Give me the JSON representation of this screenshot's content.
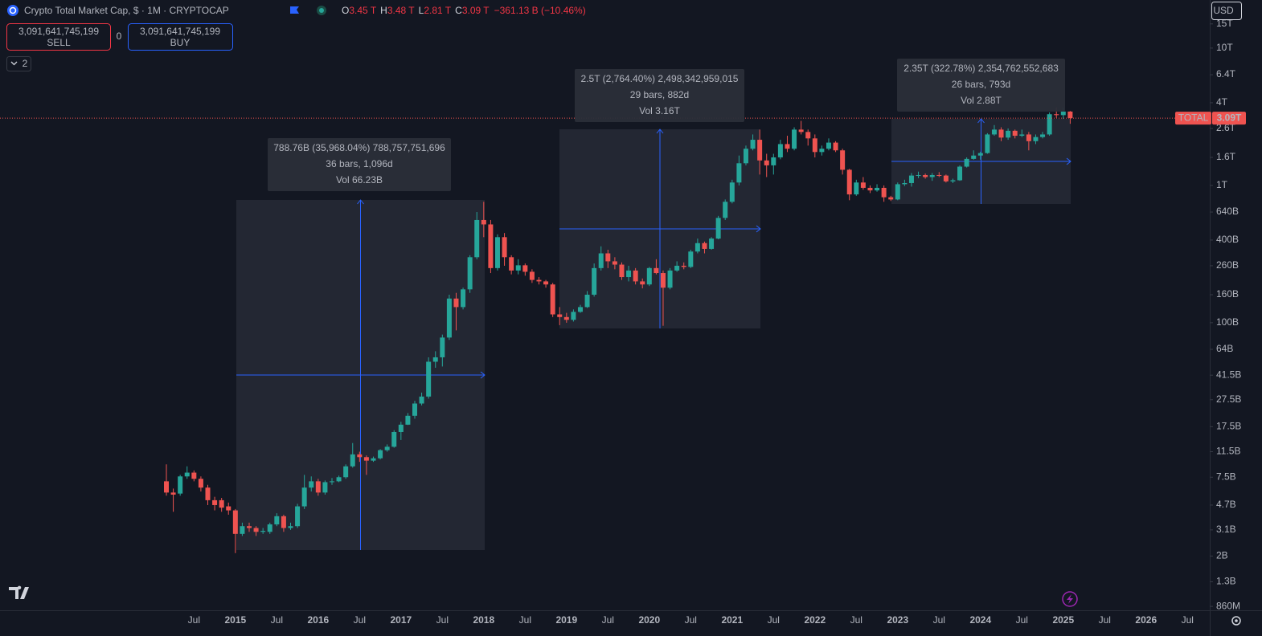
{
  "chart_data": {
    "type": "candlestick",
    "title": "Crypto Total Market Cap, $ · 1M · CRYPTOCAP",
    "categories": [
      null,
      null,
      null,
      null,
      "Jul",
      null,
      null,
      null,
      null,
      null,
      "2015",
      null,
      null,
      null,
      null,
      null,
      "Jul",
      null,
      null,
      null,
      null,
      null,
      "2016",
      null,
      null,
      null,
      null,
      null,
      "Jul",
      null,
      null,
      null,
      null,
      null,
      "2017",
      null,
      null,
      null,
      null,
      null,
      "Jul",
      null,
      null,
      null,
      null,
      null,
      "2018",
      null,
      null,
      null,
      null,
      null,
      "Jul",
      null,
      null,
      null,
      null,
      null,
      "2019",
      null,
      null,
      null,
      null,
      null,
      "Jul",
      null,
      null,
      null,
      null,
      null,
      "2020",
      null,
      null,
      null,
      null,
      null,
      "Jul",
      null,
      null,
      null,
      null,
      null,
      "2021",
      null,
      null,
      null,
      null,
      null,
      "Jul",
      null,
      null,
      null,
      null,
      null,
      "2022",
      null,
      null,
      null,
      null,
      null,
      "Jul",
      null,
      null,
      null,
      null,
      null,
      "2023",
      null,
      null,
      null,
      null,
      null,
      "Jul",
      null,
      null,
      null,
      null,
      null,
      "2024",
      null,
      null,
      null,
      null,
      null,
      "Jul",
      null,
      null,
      null,
      null,
      null,
      "2025",
      null,
      null,
      null,
      null,
      null,
      "Jul",
      null,
      null,
      null,
      null,
      null,
      "2026",
      null,
      null,
      null,
      null,
      null,
      "Jul"
    ],
    "series": [
      {
        "name": "TOTAL",
        "color_up": "#26a69a",
        "color_down": "#ef5350",
        "open": [
          7.0,
          5.8,
          5.7,
          7.6,
          8.1,
          7.3,
          6.3,
          5.1,
          5.1,
          4.6,
          4.3,
          2.9,
          3.3,
          3.2,
          3.0,
          3.0,
          3.4,
          3.9,
          3.2,
          3.3,
          4.6,
          6.3,
          7.0,
          5.8,
          6.9,
          7.0,
          7.5,
          9.0,
          11.0,
          10.5,
          9.9,
          10.3,
          11.8,
          12.5,
          16,
          18.1,
          21,
          25.8,
          29,
          52,
          56,
          78,
          150,
          130,
          175,
          300,
          560,
          520,
          250,
          420,
          300,
          240,
          262,
          235,
          205,
          200,
          190,
          115,
          110,
          105,
          120,
          130,
          160,
          250,
          320,
          280,
          265,
          215,
          240,
          200,
          190,
          250,
          230,
          180,
          240,
          260,
          255,
          330,
          380,
          345,
          410,
          580,
          760,
          1050,
          1450,
          1850,
          2150,
          1520,
          1400,
          1600,
          2000,
          1850,
          2550,
          2450,
          2200,
          1750,
          1850,
          2050,
          1800,
          1300,
          860,
          1050,
          960,
          920,
          960,
          820,
          790,
          1020,
          1040,
          1180,
          1190,
          1150,
          1190,
          1180,
          1070,
          1090,
          1370,
          1560,
          1650,
          1720,
          2350,
          2550,
          2230,
          2500,
          2300,
          2350,
          2100,
          2250,
          2350,
          3300,
          3250,
          3450,
          null,
          null,
          null,
          null,
          null,
          null,
          null,
          null,
          null,
          null,
          null,
          null,
          null,
          null,
          null,
          null,
          null
        ],
        "high": [
          9.3,
          6.2,
          7.8,
          9.0,
          8.4,
          7.6,
          6.6,
          5.4,
          5.3,
          4.9,
          4.4,
          3.5,
          3.5,
          3.3,
          3.2,
          3.5,
          4.1,
          4.0,
          3.5,
          4.8,
          7.8,
          7.6,
          7.3,
          7.1,
          7.4,
          7.7,
          9.3,
          13.3,
          11.5,
          10.8,
          10.6,
          12.0,
          13.0,
          16.5,
          19,
          22,
          27,
          31,
          56,
          62,
          82,
          160,
          165,
          180,
          310,
          640,
          760,
          560,
          440,
          450,
          310,
          290,
          270,
          245,
          215,
          205,
          195,
          130,
          118,
          125,
          135,
          170,
          270,
          360,
          340,
          300,
          275,
          260,
          250,
          210,
          255,
          290,
          240,
          250,
          280,
          275,
          340,
          410,
          390,
          420,
          600,
          790,
          1100,
          1650,
          1950,
          2350,
          2550,
          1700,
          1700,
          2150,
          2300,
          2650,
          2950,
          2550,
          2350,
          1950,
          2200,
          2100,
          1850,
          1320,
          1100,
          1150,
          1000,
          1020,
          1000,
          840,
          1050,
          1100,
          1230,
          1260,
          1220,
          1230,
          1250,
          1200,
          1120,
          1400,
          1600,
          1800,
          1760,
          2400,
          2750,
          2650,
          2600,
          2550,
          2550,
          2450,
          2350,
          2450,
          3400,
          3700,
          3700,
          3480,
          null,
          null,
          null,
          null,
          null,
          null,
          null,
          null,
          null,
          null,
          null,
          null,
          null,
          null,
          null,
          null,
          null
        ],
        "low": [
          5.5,
          4.2,
          5.5,
          7.3,
          7.0,
          5.9,
          4.7,
          4.3,
          4.2,
          4.0,
          2.1,
          2.8,
          3.0,
          2.8,
          2.9,
          2.9,
          3.3,
          3.0,
          3.1,
          3.2,
          4.4,
          5.9,
          5.5,
          5.6,
          6.6,
          6.9,
          7.3,
          8.8,
          9.7,
          7.8,
          9.7,
          10.1,
          11.5,
          12.3,
          14,
          18,
          20,
          25,
          28,
          47,
          48,
          75,
          88,
          125,
          165,
          290,
          420,
          230,
          240,
          260,
          225,
          225,
          220,
          195,
          190,
          180,
          110,
          96,
          100,
          102,
          118,
          128,
          155,
          240,
          250,
          245,
          205,
          200,
          190,
          178,
          185,
          225,
          95,
          175,
          235,
          245,
          250,
          320,
          320,
          340,
          405,
          560,
          740,
          1000,
          1400,
          1800,
          1200,
          1150,
          1200,
          1550,
          1750,
          1800,
          2350,
          1950,
          1600,
          1650,
          1800,
          1750,
          1200,
          780,
          840,
          930,
          880,
          900,
          760,
          770,
          780,
          990,
          980,
          1130,
          1120,
          1080,
          1150,
          1050,
          1040,
          1080,
          1350,
          1540,
          1540,
          1700,
          2300,
          2100,
          2150,
          2200,
          2250,
          1800,
          2000,
          2200,
          2300,
          3100,
          3050,
          2810,
          null,
          null,
          null,
          null,
          null,
          null,
          null,
          null,
          null,
          null,
          null,
          null,
          null,
          null,
          null,
          null,
          null
        ],
        "close": [
          5.8,
          5.6,
          7.6,
          8.1,
          7.3,
          6.3,
          5.1,
          4.7,
          4.5,
          4.3,
          2.9,
          3.3,
          3.2,
          3.0,
          3.05,
          3.4,
          3.9,
          3.2,
          3.3,
          4.6,
          6.3,
          7.0,
          5.8,
          6.9,
          7.0,
          7.5,
          9.0,
          11.0,
          10.5,
          9.9,
          10.3,
          11.8,
          12.5,
          16.0,
          18.1,
          21,
          25.8,
          29,
          52,
          56,
          78,
          150,
          130,
          175,
          300,
          560,
          520,
          250,
          420,
          300,
          240,
          262,
          235,
          205,
          200,
          190,
          115,
          110,
          105,
          120,
          130,
          160,
          250,
          320,
          280,
          265,
          215,
          240,
          200,
          190,
          250,
          230,
          180,
          240,
          260,
          255,
          330,
          380,
          345,
          410,
          580,
          760,
          1050,
          1450,
          1850,
          2150,
          1520,
          1400,
          1600,
          2000,
          1850,
          2550,
          2450,
          2200,
          1750,
          1850,
          2050,
          1800,
          1300,
          860,
          1050,
          960,
          920,
          960,
          820,
          790,
          1020,
          1040,
          1180,
          1190,
          1150,
          1190,
          1180,
          1070,
          1090,
          1370,
          1560,
          1650,
          1720,
          2350,
          2550,
          2230,
          2500,
          2300,
          2350,
          2100,
          2250,
          2350,
          3300,
          3250,
          3450,
          3090,
          null,
          null,
          null,
          null,
          null,
          null,
          null,
          null,
          null,
          null,
          null,
          null,
          null,
          null,
          null,
          null,
          null
        ]
      }
    ],
    "last_price_label": "3.09T",
    "currency": "USD",
    "log_scale": true,
    "ylim": [
      0.805,
      22400
    ],
    "yticks": [
      {
        "value": 0.86,
        "label": "860M"
      },
      {
        "value": 1.3,
        "label": "1.3B"
      },
      {
        "value": 2,
        "label": "2B"
      },
      {
        "value": 3.1,
        "label": "3.1B"
      },
      {
        "value": 4.7,
        "label": "4.7B"
      },
      {
        "value": 7.5,
        "label": "7.5B"
      },
      {
        "value": 11.5,
        "label": "11.5B"
      },
      {
        "value": 17.5,
        "label": "17.5B"
      },
      {
        "value": 27.5,
        "label": "27.5B"
      },
      {
        "value": 41.5,
        "label": "41.5B"
      },
      {
        "value": 64,
        "label": "64B"
      },
      {
        "value": 100,
        "label": "100B"
      },
      {
        "value": 160,
        "label": "160B"
      },
      {
        "value": 260,
        "label": "260B"
      },
      {
        "value": 400,
        "label": "400B"
      },
      {
        "value": 640,
        "label": "640B"
      },
      {
        "value": 1000,
        "label": "1T"
      },
      {
        "value": 1600,
        "label": "1.6T"
      },
      {
        "value": 2600,
        "label": "2.6T"
      },
      {
        "value": 4000,
        "label": "4T"
      },
      {
        "value": 6400,
        "label": "6.4T"
      },
      {
        "value": 10000,
        "label": "10T"
      },
      {
        "value": 15000,
        "label": "15T"
      }
    ]
  },
  "header": {
    "ohlc": [
      {
        "key": "O",
        "value": "3.45 T"
      },
      {
        "key": "H",
        "value": "3.48 T"
      },
      {
        "key": "L",
        "value": "2.81 T"
      },
      {
        "key": "C",
        "value": "3.09 T"
      }
    ],
    "change": "−361.13 B (−10.46%)"
  },
  "trade": {
    "sell_price": "3,091,641,745,199",
    "sell_label": "SELL",
    "spread": "0",
    "buy_price": "3,091,641,745,199",
    "buy_label": "BUY"
  },
  "indicators_toggle": "2",
  "measurements": [
    {
      "lines": [
        "788.76B (35,968.04%) 788,757,751,696",
        "36 bars, 1,096d",
        "Vol 66.23B"
      ]
    },
    {
      "lines": [
        "2.5T (2,764.40%) 2,498,342,959,015",
        "29 bars, 882d",
        "Vol 3.16T"
      ]
    },
    {
      "lines": [
        "2.35T (322.78%) 2,354,762,552,683",
        "26 bars, 793d",
        "Vol 2.88T"
      ]
    }
  ]
}
